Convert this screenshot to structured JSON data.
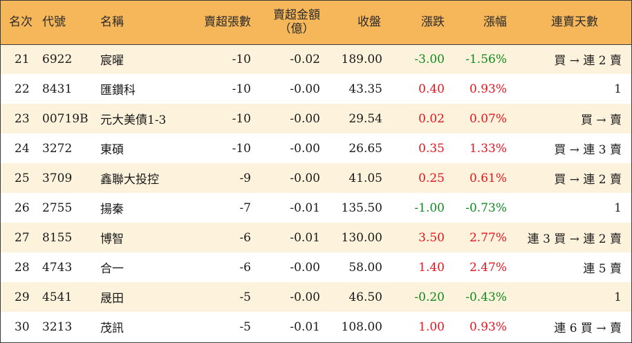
{
  "headers": {
    "rank": "名次",
    "code": "代號",
    "name": "名稱",
    "lots": "賣超張數",
    "amount_line1": "賣超金額",
    "amount_line2": "（億）",
    "close": "收盤",
    "change": "漲跌",
    "pct": "漲幅",
    "days": "連賣天數"
  },
  "rows": [
    {
      "rank": "21",
      "code": "6922",
      "name": "宸曜",
      "lots": "-10",
      "amount": "-0.02",
      "close": "189.00",
      "change": "-3.00",
      "pct": "-1.56%",
      "days": "買 → 連 2 賣",
      "dir": "down"
    },
    {
      "rank": "22",
      "code": "8431",
      "name": "匯鑽科",
      "lots": "-10",
      "amount": "-0.00",
      "close": "43.35",
      "change": "0.40",
      "pct": "0.93%",
      "days": "1",
      "dir": "up"
    },
    {
      "rank": "23",
      "code": "00719B",
      "name": "元大美債1-3",
      "lots": "-10",
      "amount": "-0.00",
      "close": "29.54",
      "change": "0.02",
      "pct": "0.07%",
      "days": "買 → 賣",
      "dir": "up"
    },
    {
      "rank": "24",
      "code": "3272",
      "name": "東碩",
      "lots": "-10",
      "amount": "-0.00",
      "close": "26.65",
      "change": "0.35",
      "pct": "1.33%",
      "days": "買 → 連 3 賣",
      "dir": "up"
    },
    {
      "rank": "25",
      "code": "3709",
      "name": "鑫聯大投控",
      "lots": "-9",
      "amount": "-0.00",
      "close": "41.05",
      "change": "0.25",
      "pct": "0.61%",
      "days": "買 → 連 2 賣",
      "dir": "up"
    },
    {
      "rank": "26",
      "code": "2755",
      "name": "揚秦",
      "lots": "-7",
      "amount": "-0.01",
      "close": "135.50",
      "change": "-1.00",
      "pct": "-0.73%",
      "days": "1",
      "dir": "down"
    },
    {
      "rank": "27",
      "code": "8155",
      "name": "博智",
      "lots": "-6",
      "amount": "-0.01",
      "close": "130.00",
      "change": "3.50",
      "pct": "2.77%",
      "days": "連 3 買 → 連 2 賣",
      "dir": "up"
    },
    {
      "rank": "28",
      "code": "4743",
      "name": "合一",
      "lots": "-6",
      "amount": "-0.00",
      "close": "58.00",
      "change": "1.40",
      "pct": "2.47%",
      "days": "連 5 賣",
      "dir": "up"
    },
    {
      "rank": "29",
      "code": "4541",
      "name": "晟田",
      "lots": "-5",
      "amount": "-0.00",
      "close": "46.50",
      "change": "-0.20",
      "pct": "-0.43%",
      "days": "1",
      "dir": "down"
    },
    {
      "rank": "30",
      "code": "3213",
      "name": "茂訊",
      "lots": "-5",
      "amount": "-0.01",
      "close": "108.00",
      "change": "1.00",
      "pct": "0.93%",
      "days": "連 6 買 → 賣",
      "dir": "up"
    }
  ]
}
